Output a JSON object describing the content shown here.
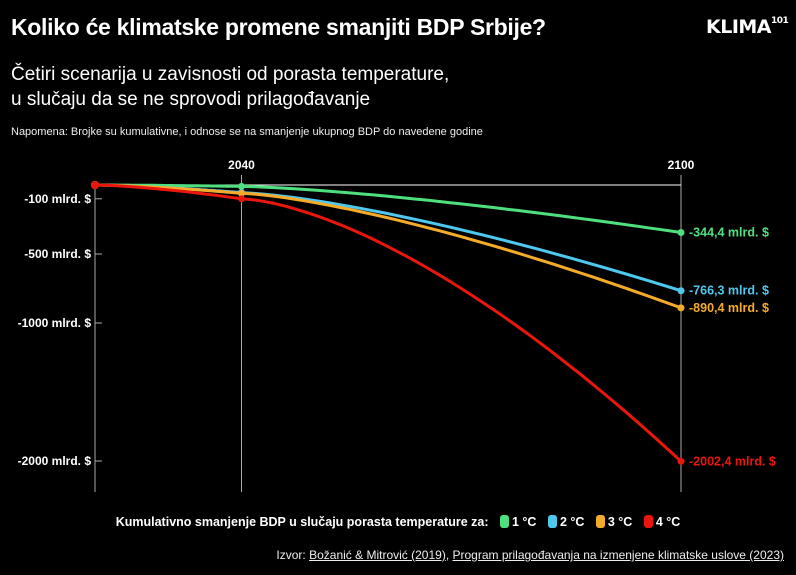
{
  "title": "Koliko će klimatske promene smanjiti BDP Srbije?",
  "subtitle_lines": [
    "Četiri scenarija u zavisnosti od porasta temperature,",
    "u slučaju da se ne sprovodi prilagođavanje"
  ],
  "note": "Napomena: Brojke su kumulativne, i odnose se na smanjenje ukupnog BDP do navedene godine",
  "logo": {
    "text": "KLIMA",
    "sup": "101"
  },
  "legend": {
    "label": "Kumulativno smanjenje BDP u slučaju porasta temperature za:",
    "items": [
      {
        "label": "1 °C",
        "color": "#4ee07e"
      },
      {
        "label": "2 °C",
        "color": "#4fc8f0"
      },
      {
        "label": "3 °C",
        "color": "#f5ab2a"
      },
      {
        "label": "4 °C",
        "color": "#e8160c"
      }
    ]
  },
  "source": {
    "prefix": "Izvor: ",
    "link1": "Božanić & Mitrović (2019)",
    "sep": ", ",
    "link2": "Program prilagođavanja na izmenjene klimatske uslove (2023)"
  },
  "chart_data": {
    "type": "line",
    "x": [
      2020,
      2040,
      2100
    ],
    "x_tick_labels": [
      {
        "value": 2040,
        "label": "2040"
      },
      {
        "value": 2100,
        "label": "2100"
      }
    ],
    "y_ticks": [
      {
        "value": -100,
        "label": "-100 mlrd. $"
      },
      {
        "value": -500,
        "label": "-500 mlrd. $"
      },
      {
        "value": -1000,
        "label": "-1000 mlrd. $"
      },
      {
        "value": -2000,
        "label": "-2000 mlrd. $"
      }
    ],
    "ylim": [
      -2200,
      0
    ],
    "unit": "mlrd. $",
    "series": [
      {
        "name": "1 °C",
        "color": "#4ee07e",
        "values": [
          0,
          -10,
          -344.4
        ],
        "end_label": "-344,4 mlrd. $"
      },
      {
        "name": "2 °C",
        "color": "#4fc8f0",
        "values": [
          0,
          -55,
          -766.3
        ],
        "end_label": "-766,3 mlrd. $"
      },
      {
        "name": "3 °C",
        "color": "#f5ab2a",
        "values": [
          0,
          -60,
          -890.4
        ],
        "end_label": "-890,4 mlrd. $"
      },
      {
        "name": "4 °C",
        "color": "#e8160c",
        "values": [
          0,
          -100,
          -2002.4
        ],
        "end_label": "-2002,4 mlrd. $"
      }
    ]
  }
}
